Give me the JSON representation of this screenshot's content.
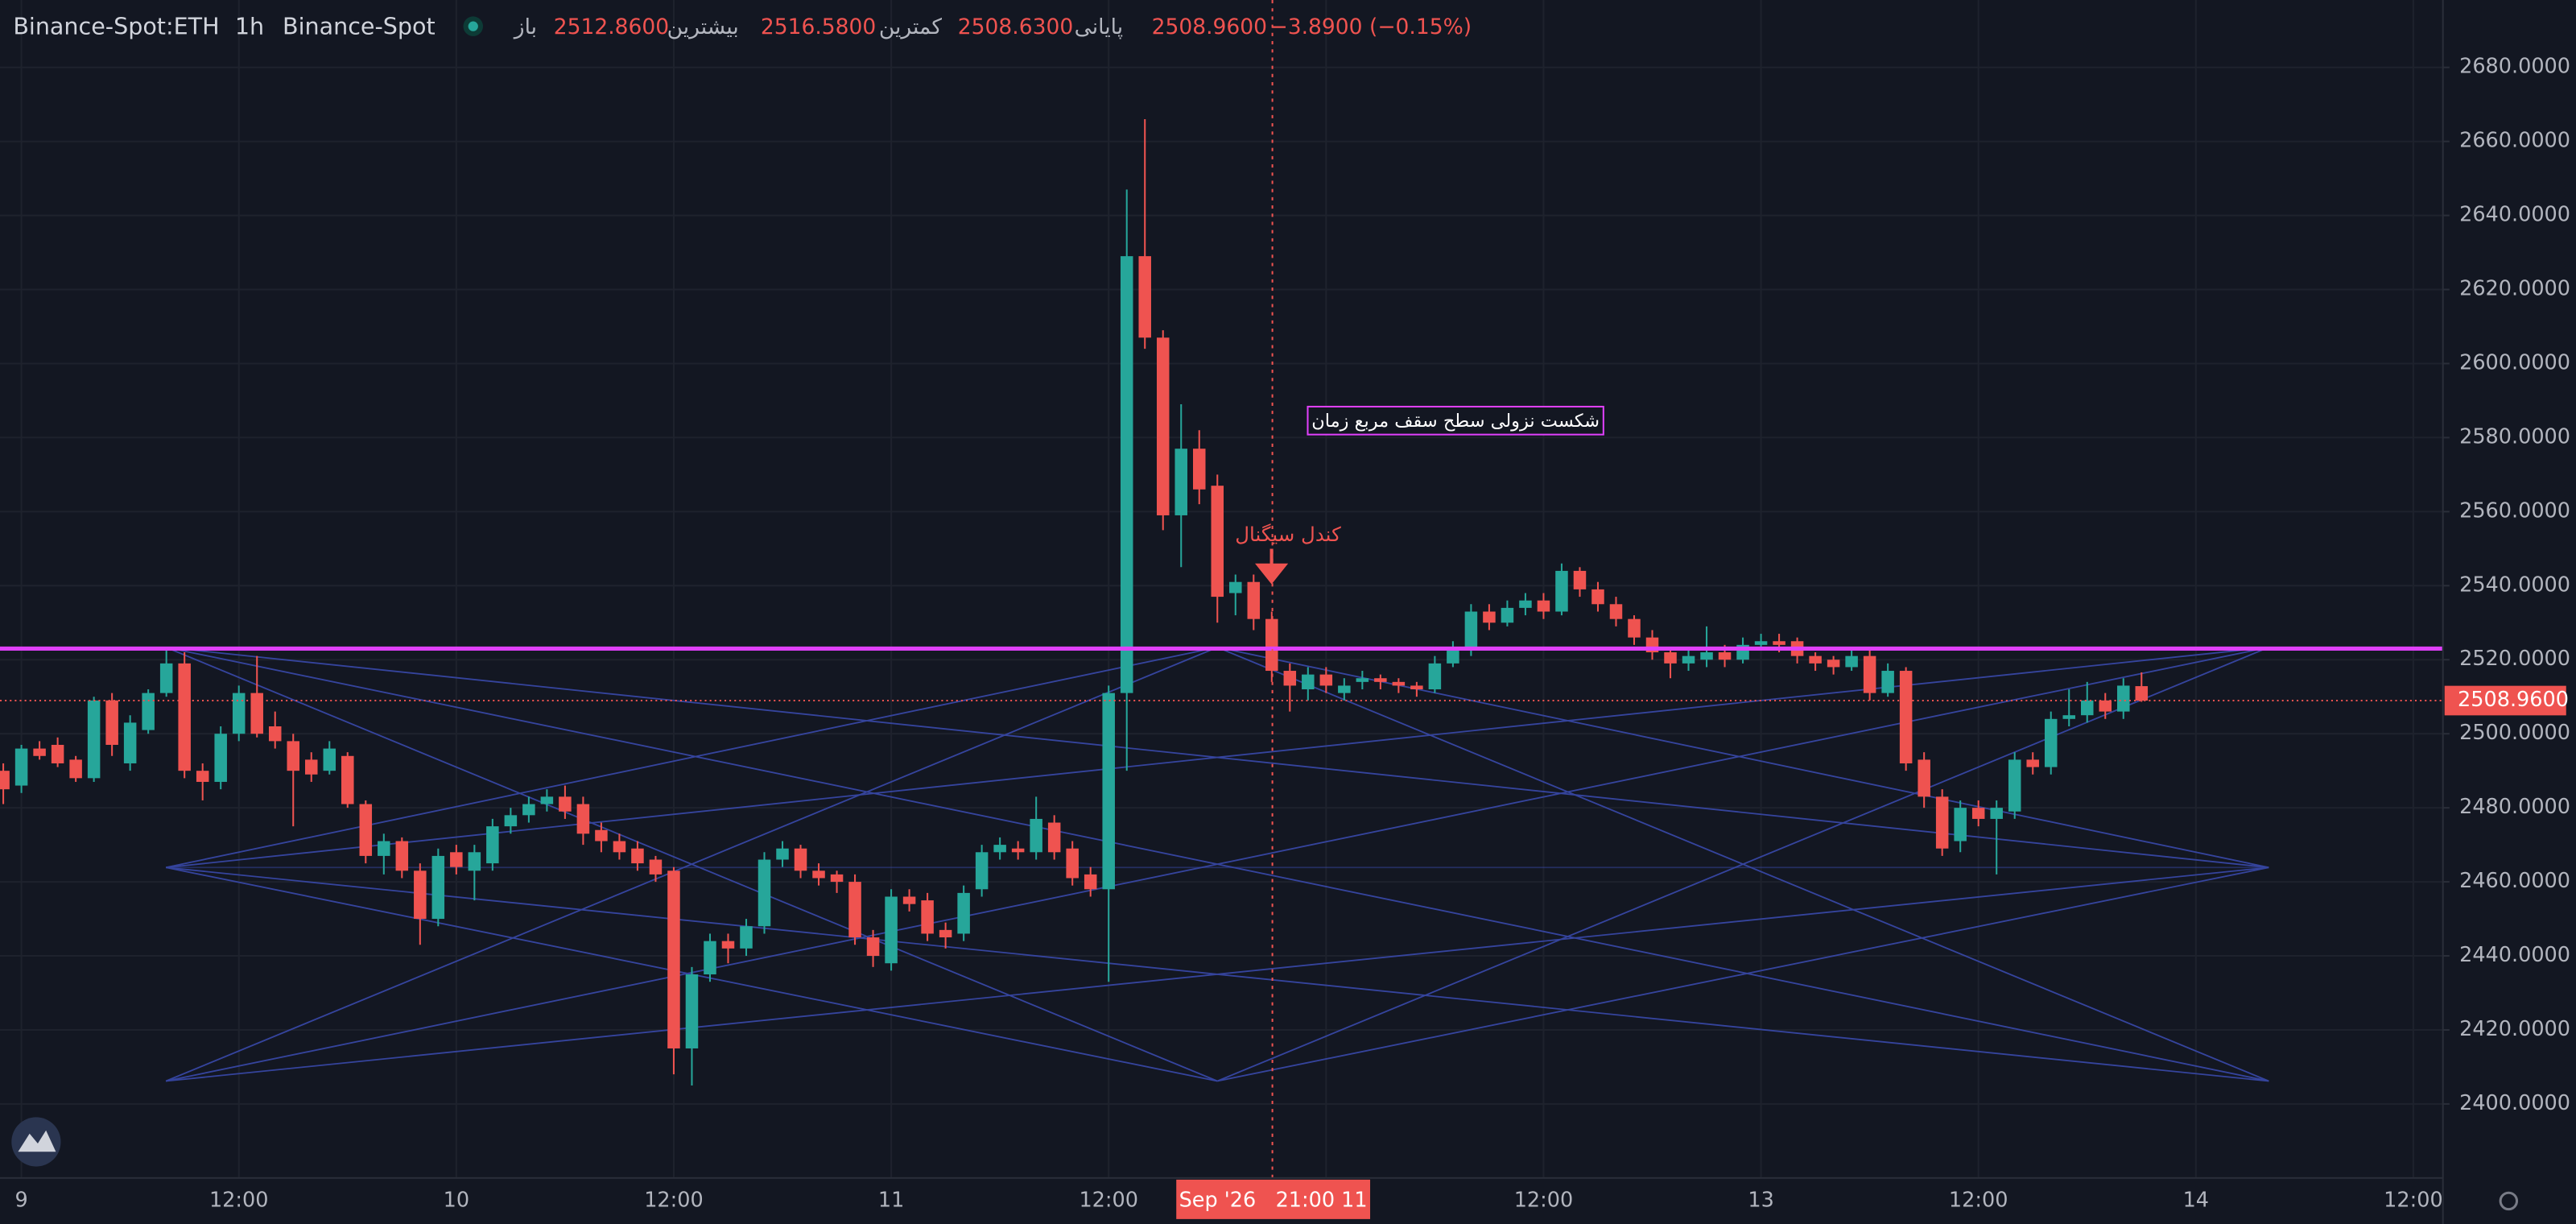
{
  "header": {
    "symbol": "Binance-Spot:ETH",
    "interval": "1h",
    "exchange": "Binance-Spot",
    "legend": [
      {
        "label": "باز",
        "value": "2512.8600"
      },
      {
        "label": "بیشترین",
        "value": "2516.5800"
      },
      {
        "label": "کمترین",
        "value": "2508.6300"
      },
      {
        "label": "پایانی",
        "value": "2508.9600"
      }
    ],
    "change": "−3.8900 (−0.15%)"
  },
  "chart_data": {
    "type": "candlestick",
    "up_color": "#26a69a",
    "down_color": "#ef5350",
    "grid": true,
    "ylim": [
      2380,
      2698.2
    ],
    "yticks": [
      {
        "value": 2400,
        "label": "2400.0000"
      },
      {
        "value": 2420,
        "label": "2420.0000"
      },
      {
        "value": 2440,
        "label": "2440.0000"
      },
      {
        "value": 2460,
        "label": "2460.0000"
      },
      {
        "value": 2480,
        "label": "2480.0000"
      },
      {
        "value": 2500,
        "label": "2500.0000"
      },
      {
        "value": 2520,
        "label": "2520.0000"
      },
      {
        "value": 2540,
        "label": "2540.0000"
      },
      {
        "value": 2560,
        "label": "2560.0000"
      },
      {
        "value": 2580,
        "label": "2580.0000"
      },
      {
        "value": 2600,
        "label": "2600.0000"
      },
      {
        "value": 2620,
        "label": "2620.0000"
      },
      {
        "value": 2640,
        "label": "2640.0000"
      },
      {
        "value": 2660,
        "label": "2660.0000"
      },
      {
        "value": 2680,
        "label": "2680.0000"
      }
    ],
    "categories": [
      null,
      "9",
      null,
      null,
      null,
      null,
      null,
      null,
      null,
      null,
      null,
      null,
      null,
      "12:00",
      null,
      null,
      null,
      null,
      null,
      null,
      null,
      null,
      null,
      null,
      null,
      "10",
      null,
      null,
      null,
      null,
      null,
      null,
      null,
      null,
      null,
      null,
      null,
      "12:00",
      null,
      null,
      null,
      null,
      null,
      null,
      null,
      null,
      null,
      null,
      null,
      "11",
      null,
      null,
      null,
      null,
      null,
      null,
      null,
      null,
      null,
      null,
      null,
      "12:00",
      null,
      null,
      null,
      null,
      null,
      null,
      null,
      null,
      null,
      null,
      null,
      null,
      null,
      null,
      null,
      null,
      null,
      null,
      null,
      null,
      null,
      null,
      null,
      "12:00",
      null,
      null,
      null,
      null,
      null,
      null,
      null,
      null,
      null,
      null,
      null,
      "13",
      null,
      null,
      null,
      null,
      null,
      null,
      null,
      null,
      null,
      null,
      null,
      "12:00",
      null,
      null,
      null,
      null,
      null,
      null,
      null,
      null,
      null,
      null,
      null,
      "14",
      null,
      null,
      null,
      null,
      null,
      null,
      null,
      null,
      null,
      null,
      null,
      "12:00",
      null
    ],
    "open": [
      2490,
      2486,
      2496,
      2497,
      2493,
      2488,
      2509,
      2492,
      2501,
      2511,
      2519,
      2490,
      2487,
      2500,
      2511,
      2502,
      2498,
      2493,
      2490,
      2494,
      2481,
      2467,
      2471,
      2463,
      2450,
      2468,
      2463,
      2465,
      2475,
      2478,
      2481,
      2483,
      2481,
      2474,
      2471,
      2469,
      2466,
      2463,
      2415,
      2435,
      2444,
      2442,
      2448,
      2466,
      2469,
      2463,
      2462,
      2460,
      2445,
      2438,
      2456,
      2455,
      2447,
      2446,
      2458,
      2468,
      2469,
      2468,
      2476,
      2469,
      2462,
      2458,
      2511,
      2629,
      2607,
      2559,
      2577,
      2567,
      2538,
      2541,
      2531,
      2517,
      2512,
      2516,
      2511,
      2514,
      2515,
      2514,
      2513,
      2512,
      2519,
      2523,
      2533,
      2530,
      2534,
      2536,
      2533,
      2544,
      2539,
      2535,
      2531,
      2526,
      2522,
      2519,
      2520,
      2522,
      2520,
      2524,
      2525,
      2525,
      2521,
      2520,
      2518,
      2521,
      2511,
      2517,
      2493,
      2483,
      2471,
      2480,
      2477,
      2479,
      2493,
      2491,
      2504,
      2505,
      2509,
      2506,
      2512.86,
      null,
      null,
      null,
      null,
      null,
      null,
      null,
      null,
      null,
      null,
      null,
      null,
      null,
      null,
      null,
      null
    ],
    "high": [
      2492,
      2497,
      2498,
      2499,
      2494,
      2510,
      2511,
      2505,
      2512,
      2523,
      2522,
      2492,
      2502,
      2513,
      2521,
      2506,
      2500,
      2495,
      2498,
      2495,
      2482,
      2473,
      2472,
      2465,
      2469,
      2470,
      2470,
      2477,
      2480,
      2483,
      2485,
      2486,
      2483,
      2476,
      2473,
      2471,
      2467,
      2464,
      2437,
      2446,
      2446,
      2450,
      2468,
      2471,
      2470,
      2465,
      2463,
      2462,
      2447,
      2458,
      2458,
      2457,
      2449,
      2459,
      2470,
      2472,
      2471,
      2483,
      2478,
      2471,
      2464,
      2513,
      2647,
      2666,
      2609,
      2589,
      2582,
      2570,
      2543,
      2543,
      2533,
      2519,
      2518,
      2518,
      2515,
      2517,
      2516,
      2515,
      2514,
      2521,
      2525,
      2535,
      2535,
      2536,
      2538,
      2538,
      2546,
      2545,
      2541,
      2537,
      2532,
      2528,
      2523,
      2523,
      2529,
      2524,
      2526,
      2527,
      2527,
      2526,
      2522,
      2521,
      2523,
      2523,
      2519,
      2518,
      2495,
      2485,
      2482,
      2482,
      2482,
      2495,
      2495,
      2506,
      2512,
      2514,
      2511,
      2515,
      2516.58,
      null,
      null,
      null,
      null,
      null,
      null,
      null,
      null,
      null,
      null,
      null,
      null,
      null,
      null,
      null,
      null
    ],
    "low": [
      2481,
      2484,
      2493,
      2491,
      2487,
      2487,
      2494,
      2490,
      2500,
      2510,
      2488,
      2482,
      2485,
      2498,
      2499,
      2496,
      2475,
      2487,
      2489,
      2480,
      2465,
      2462,
      2461,
      2443,
      2448,
      2462,
      2455,
      2463,
      2473,
      2476,
      2479,
      2477,
      2470,
      2468,
      2466,
      2463,
      2460,
      2408,
      2405,
      2433,
      2438,
      2440,
      2446,
      2464,
      2461,
      2459,
      2457,
      2443,
      2437,
      2436,
      2452,
      2444,
      2442,
      2444,
      2456,
      2466,
      2466,
      2466,
      2466,
      2459,
      2456,
      2433,
      2490,
      2604,
      2555,
      2545,
      2562,
      2530,
      2532,
      2528,
      2514,
      2506,
      2509,
      2511,
      2509,
      2512,
      2512,
      2511,
      2510,
      2511,
      2518,
      2521,
      2528,
      2529,
      2532,
      2531,
      2532,
      2537,
      2533,
      2529,
      2524,
      2520,
      2515,
      2517,
      2518,
      2518,
      2519,
      2523,
      2522,
      2519,
      2517,
      2516,
      2517,
      2509,
      2510,
      2490,
      2480,
      2467,
      2468,
      2475,
      2462,
      2477,
      2489,
      2489,
      2502,
      2503,
      2504,
      2504,
      2508.63,
      null,
      null,
      null,
      null,
      null,
      null,
      null,
      null,
      null,
      null,
      null,
      null,
      null,
      null,
      null,
      null
    ],
    "close": [
      2485,
      2496,
      2494,
      2492,
      2488,
      2509,
      2497,
      2503,
      2511,
      2519,
      2490,
      2487,
      2500,
      2511,
      2500,
      2498,
      2490,
      2489,
      2496,
      2481,
      2467,
      2471,
      2463,
      2450,
      2467,
      2464,
      2468,
      2475,
      2478,
      2481,
      2483,
      2479,
      2473,
      2471,
      2468,
      2465,
      2462,
      2415,
      2435,
      2444,
      2442,
      2448,
      2466,
      2469,
      2463,
      2461,
      2460,
      2445,
      2440,
      2456,
      2454,
      2446,
      2445,
      2457,
      2468,
      2470,
      2468,
      2477,
      2468,
      2461,
      2458,
      2511,
      2629,
      2607,
      2559,
      2577,
      2566,
      2537,
      2541,
      2531,
      2517,
      2513,
      2516,
      2513,
      2513,
      2515,
      2514,
      2513,
      2512,
      2519,
      2523,
      2533,
      2530,
      2534,
      2536,
      2533,
      2544,
      2539,
      2535,
      2531,
      2526,
      2522,
      2519,
      2521,
      2522,
      2520,
      2524,
      2525,
      2524,
      2521,
      2519,
      2518,
      2521,
      2511,
      2517,
      2492,
      2483,
      2469,
      2480,
      2477,
      2480,
      2493,
      2491,
      2504,
      2505,
      2509,
      2506,
      2513,
      2508.96,
      null,
      null,
      null,
      null,
      null,
      null,
      null,
      null,
      null,
      null,
      null,
      null,
      null,
      null,
      null,
      null
    ],
    "level": 2523,
    "level_color": "#e040fb",
    "last_price": {
      "value": 2508.96,
      "label": "2508.9600"
    },
    "crosshair_label": "Sep '26   21:00 11",
    "annotations": [
      "شکست نزولی سطح سقف مربع زمان",
      "کندل سیگنال"
    ]
  }
}
